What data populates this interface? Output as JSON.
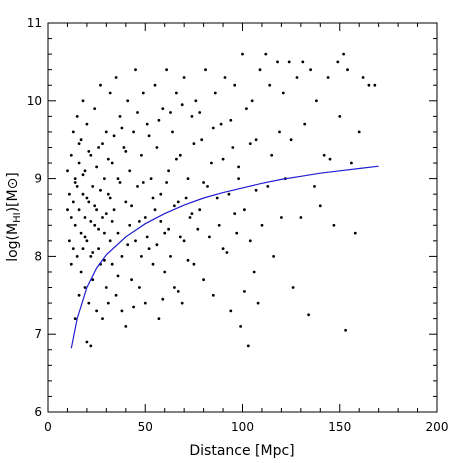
{
  "chart_data": {
    "type": "scatter",
    "title": "",
    "xlabel": "Distance [Mpc]",
    "ylabel": "log(M_HI)[M⊙]",
    "ylabel_parts": {
      "pre": "log(M",
      "sub": "HI",
      "post": ")[M⊙]"
    },
    "xlim": [
      0,
      200
    ],
    "ylim": [
      6,
      11
    ],
    "xticks": [
      0,
      50,
      100,
      150,
      200
    ],
    "yticks": [
      6,
      7,
      8,
      9,
      10,
      11
    ],
    "xtick_labels": [
      "0",
      "50",
      "100",
      "150",
      "200"
    ],
    "ytick_labels": [
      "6",
      "7",
      "8",
      "9",
      "10",
      "11"
    ],
    "grid": false,
    "colors": {
      "points": "#000000",
      "curve": "#1f1fd0",
      "axes": "#000000"
    },
    "series": [
      {
        "kind": "points",
        "points": [
          [
            10,
            8.6
          ],
          [
            10,
            9.1
          ],
          [
            11,
            8.2
          ],
          [
            11,
            8.8
          ],
          [
            12,
            8.5
          ],
          [
            12,
            9.3
          ],
          [
            12,
            7.9
          ],
          [
            13,
            8.1
          ],
          [
            13,
            8.7
          ],
          [
            13,
            9.6
          ],
          [
            14,
            7.2
          ],
          [
            14,
            8.4
          ],
          [
            14,
            9.0
          ],
          [
            15,
            8.0
          ],
          [
            15,
            8.9
          ],
          [
            15,
            9.8
          ],
          [
            16,
            7.5
          ],
          [
            16,
            8.6
          ],
          [
            16,
            9.2
          ],
          [
            17,
            8.3
          ],
          [
            17,
            7.8
          ],
          [
            17,
            9.5
          ],
          [
            18,
            8.1
          ],
          [
            18,
            8.8
          ],
          [
            18,
            10.0
          ],
          [
            19,
            7.6
          ],
          [
            19,
            8.5
          ],
          [
            19,
            9.1
          ],
          [
            20,
            6.9
          ],
          [
            20,
            8.2
          ],
          [
            20,
            9.7
          ],
          [
            21,
            7.4
          ],
          [
            21,
            8.7
          ],
          [
            22,
            8.0
          ],
          [
            22,
            9.3
          ],
          [
            22,
            6.85
          ],
          [
            23,
            7.7
          ],
          [
            23,
            8.9
          ],
          [
            24,
            8.4
          ],
          [
            24,
            9.9
          ],
          [
            25,
            7.3
          ],
          [
            25,
            8.6
          ],
          [
            26,
            8.1
          ],
          [
            26,
            9.4
          ],
          [
            27,
            7.9
          ],
          [
            27,
            10.2
          ],
          [
            28,
            8.5
          ],
          [
            28,
            7.2
          ],
          [
            29,
            9.0
          ],
          [
            29,
            8.3
          ],
          [
            30,
            7.6
          ],
          [
            30,
            9.6
          ],
          [
            31,
            8.8
          ],
          [
            31,
            7.4
          ],
          [
            32,
            8.2
          ],
          [
            32,
            10.1
          ],
          [
            33,
            9.2
          ],
          [
            33,
            7.9
          ],
          [
            34,
            8.6
          ],
          [
            35,
            10.3
          ],
          [
            35,
            7.5
          ],
          [
            36,
            9.0
          ],
          [
            36,
            8.3
          ],
          [
            37,
            9.8
          ],
          [
            38,
            8.0
          ],
          [
            38,
            7.3
          ],
          [
            39,
            9.4
          ],
          [
            40,
            8.7
          ],
          [
            40,
            7.1
          ],
          [
            41,
            10.0
          ],
          [
            42,
            8.4
          ],
          [
            42,
            9.1
          ],
          [
            43,
            7.7
          ],
          [
            44,
            9.6
          ],
          [
            45,
            8.2
          ],
          [
            45,
            10.4
          ],
          [
            46,
            8.9
          ],
          [
            47,
            7.6
          ],
          [
            48,
            9.3
          ],
          [
            48,
            8.0
          ],
          [
            49,
            10.1
          ],
          [
            50,
            8.5
          ],
          [
            50,
            7.4
          ],
          [
            51,
            9.7
          ],
          [
            52,
            8.1
          ],
          [
            53,
            9.0
          ],
          [
            54,
            7.9
          ],
          [
            55,
            10.2
          ],
          [
            55,
            8.6
          ],
          [
            56,
            9.4
          ],
          [
            57,
            7.2
          ],
          [
            58,
            8.8
          ],
          [
            59,
            9.9
          ],
          [
            60,
            8.3
          ],
          [
            60,
            7.8
          ],
          [
            61,
            10.4
          ],
          [
            62,
            9.1
          ],
          [
            63,
            8.0
          ],
          [
            64,
            9.6
          ],
          [
            65,
            7.6
          ],
          [
            66,
            10.1
          ],
          [
            67,
            8.7
          ],
          [
            68,
            9.3
          ],
          [
            69,
            7.4
          ],
          [
            70,
            10.3
          ],
          [
            70,
            8.2
          ],
          [
            72,
            9.0
          ],
          [
            73,
            8.5
          ],
          [
            74,
            9.8
          ],
          [
            75,
            7.9
          ],
          [
            76,
            10.0
          ],
          [
            78,
            8.6
          ],
          [
            79,
            9.5
          ],
          [
            80,
            7.7
          ],
          [
            81,
            10.4
          ],
          [
            82,
            8.9
          ],
          [
            84,
            9.2
          ],
          [
            85,
            7.5
          ],
          [
            86,
            10.1
          ],
          [
            88,
            8.4
          ],
          [
            89,
            9.7
          ],
          [
            90,
            8.1
          ],
          [
            91,
            10.3
          ],
          [
            93,
            8.8
          ],
          [
            94,
            7.3
          ],
          [
            95,
            9.4
          ],
          [
            96,
            10.2
          ],
          [
            97,
            8.3
          ],
          [
            98,
            9.0
          ],
          [
            99,
            7.1
          ],
          [
            100,
            10.6
          ],
          [
            101,
            8.6
          ],
          [
            102,
            9.9
          ],
          [
            103,
            6.85
          ],
          [
            104,
            8.2
          ],
          [
            105,
            10.0
          ],
          [
            106,
            7.8
          ],
          [
            107,
            9.5
          ],
          [
            108,
            7.4
          ],
          [
            109,
            10.4
          ],
          [
            110,
            8.4
          ],
          [
            112,
            10.6
          ],
          [
            113,
            8.9
          ],
          [
            114,
            10.2
          ],
          [
            115,
            9.3
          ],
          [
            116,
            8.0
          ],
          [
            118,
            10.5
          ],
          [
            119,
            9.6
          ],
          [
            120,
            8.5
          ],
          [
            121,
            10.1
          ],
          [
            122,
            9.0
          ],
          [
            124,
            10.5
          ],
          [
            125,
            9.5
          ],
          [
            126,
            7.6
          ],
          [
            128,
            10.3
          ],
          [
            130,
            8.5
          ],
          [
            131,
            10.5
          ],
          [
            132,
            9.7
          ],
          [
            134,
            7.25
          ],
          [
            135,
            10.4
          ],
          [
            137,
            8.9
          ],
          [
            138,
            10.0
          ],
          [
            140,
            8.65
          ],
          [
            142,
            9.3
          ],
          [
            144,
            10.3
          ],
          [
            145,
            9.25
          ],
          [
            147,
            8.4
          ],
          [
            149,
            10.5
          ],
          [
            150,
            9.8
          ],
          [
            152,
            10.6
          ],
          [
            153,
            7.05
          ],
          [
            154,
            10.4
          ],
          [
            156,
            9.2
          ],
          [
            158,
            8.3
          ],
          [
            160,
            9.6
          ],
          [
            162,
            10.3
          ],
          [
            165,
            10.2
          ],
          [
            168,
            10.2
          ],
          [
            14,
            8.95
          ],
          [
            16,
            9.45
          ],
          [
            18,
            9.05
          ],
          [
            19,
            8.25
          ],
          [
            20,
            8.75
          ],
          [
            21,
            9.35
          ],
          [
            22,
            8.45
          ],
          [
            23,
            8.05
          ],
          [
            24,
            8.65
          ],
          [
            25,
            9.15
          ],
          [
            26,
            8.35
          ],
          [
            27,
            8.85
          ],
          [
            28,
            9.45
          ],
          [
            29,
            7.95
          ],
          [
            30,
            8.55
          ],
          [
            31,
            9.25
          ],
          [
            32,
            8.75
          ],
          [
            33,
            8.45
          ],
          [
            34,
            9.55
          ],
          [
            36,
            7.75
          ],
          [
            37,
            8.95
          ],
          [
            38,
            9.65
          ],
          [
            40,
            9.35
          ],
          [
            41,
            8.15
          ],
          [
            43,
            8.65
          ],
          [
            44,
            7.35
          ],
          [
            46,
            9.85
          ],
          [
            47,
            8.45
          ],
          [
            49,
            8.95
          ],
          [
            51,
            8.25
          ],
          [
            52,
            9.55
          ],
          [
            54,
            8.75
          ],
          [
            56,
            8.15
          ],
          [
            57,
            9.75
          ],
          [
            58,
            8.45
          ],
          [
            59,
            7.45
          ],
          [
            61,
            8.95
          ],
          [
            62,
            8.35
          ],
          [
            63,
            9.85
          ],
          [
            65,
            8.65
          ],
          [
            66,
            9.25
          ],
          [
            67,
            7.55
          ],
          [
            68,
            8.25
          ],
          [
            69,
            9.95
          ],
          [
            71,
            8.75
          ],
          [
            72,
            7.95
          ],
          [
            74,
            8.55
          ],
          [
            75,
            9.45
          ],
          [
            77,
            8.35
          ],
          [
            78,
            9.85
          ],
          [
            80,
            8.95
          ],
          [
            83,
            8.25
          ],
          [
            85,
            9.65
          ],
          [
            87,
            8.75
          ],
          [
            90,
            9.25
          ],
          [
            92,
            8.05
          ],
          [
            94,
            9.75
          ],
          [
            96,
            8.55
          ],
          [
            98,
            9.15
          ],
          [
            101,
            7.55
          ],
          [
            104,
            9.45
          ],
          [
            107,
            8.85
          ]
        ]
      },
      {
        "kind": "line",
        "name": "",
        "points": [
          [
            12,
            6.82
          ],
          [
            15,
            7.2
          ],
          [
            20,
            7.6
          ],
          [
            25,
            7.85
          ],
          [
            30,
            8.02
          ],
          [
            40,
            8.25
          ],
          [
            50,
            8.42
          ],
          [
            60,
            8.55
          ],
          [
            70,
            8.66
          ],
          [
            80,
            8.75
          ],
          [
            90,
            8.82
          ],
          [
            100,
            8.88
          ],
          [
            110,
            8.94
          ],
          [
            120,
            8.99
          ],
          [
            130,
            9.03
          ],
          [
            140,
            9.07
          ],
          [
            150,
            9.1
          ],
          [
            160,
            9.13
          ],
          [
            170,
            9.16
          ]
        ]
      }
    ]
  }
}
